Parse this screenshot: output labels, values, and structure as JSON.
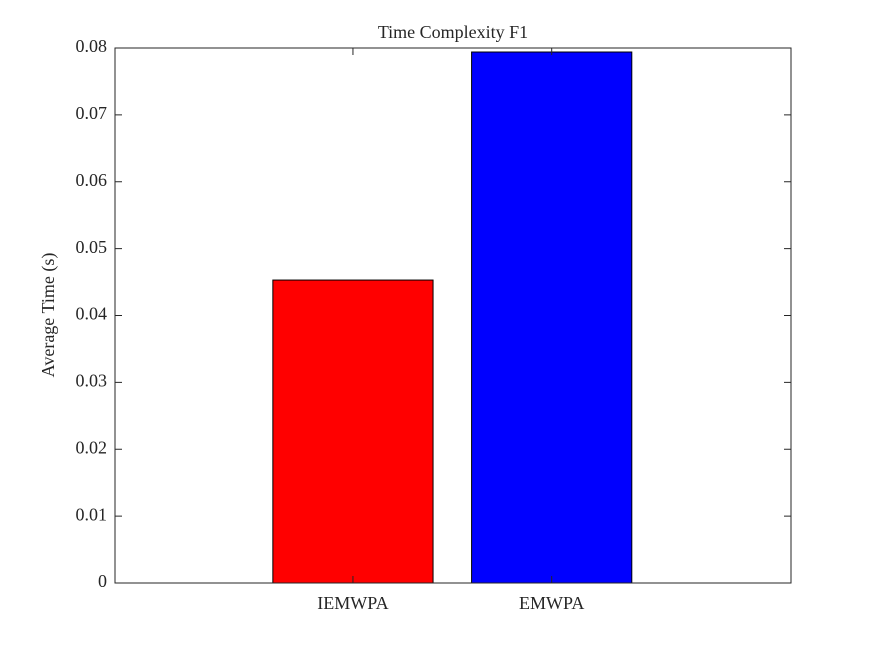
{
  "chart_data": {
    "type": "bar",
    "title": "Time Complexity F1",
    "ylabel": "Average Time (s)",
    "categories": [
      "IEMWPA",
      "EMWPA"
    ],
    "values": [
      0.0453,
      0.0794
    ],
    "colors": [
      "#ff0000",
      "#0000ff"
    ],
    "ylim": [
      0,
      0.08
    ],
    "yticks": [
      0,
      0.01,
      0.02,
      0.03,
      0.04,
      0.05,
      0.06,
      0.07,
      0.08
    ]
  }
}
